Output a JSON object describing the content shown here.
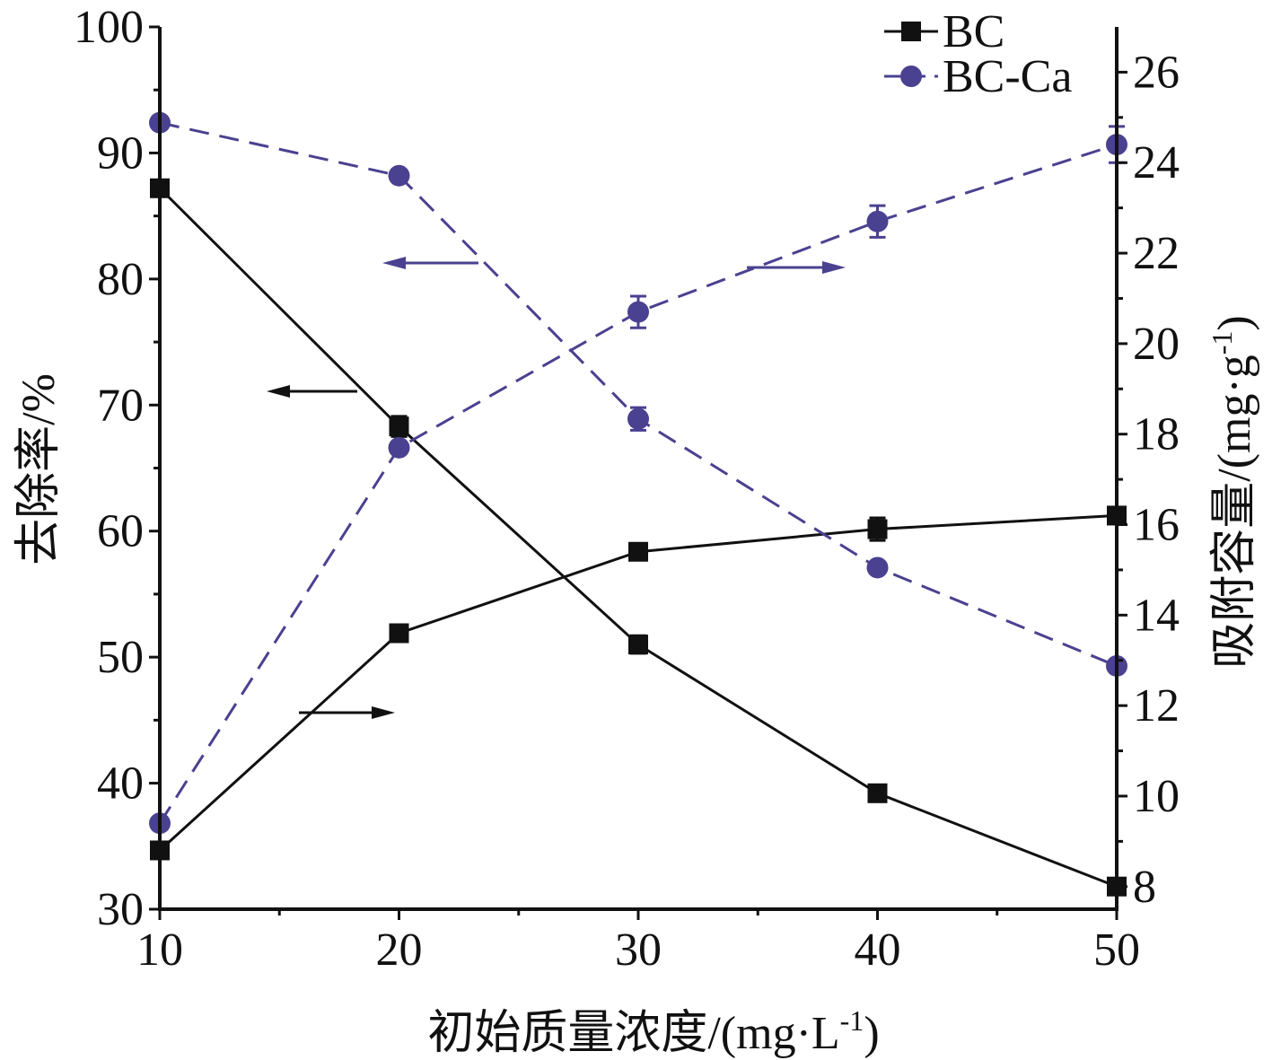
{
  "chart_data": {
    "type": "line",
    "x": [
      10,
      20,
      30,
      40,
      50
    ],
    "xlabel": "初始质量浓度/(mg·L-1)",
    "xlabel_main": "初始质量浓度/(mg·L",
    "xlabel_sup": "-1",
    "xlabel_close": ")",
    "ylabel_left": "去除率/%",
    "ylabel_right": "吸附容量/(mg·g-1)",
    "ylabel_right_main": "吸附容量/(mg·g",
    "ylabel_right_sup": "-1",
    "ylabel_right_close": ")",
    "xlim": [
      10,
      50
    ],
    "ylim_left": [
      30,
      100
    ],
    "ylim_right": [
      7.5,
      27
    ],
    "xticks": [
      10,
      20,
      30,
      40,
      50
    ],
    "yticks_left": [
      30,
      40,
      50,
      60,
      70,
      80,
      90,
      100
    ],
    "yticks_right": [
      8,
      10,
      12,
      14,
      16,
      18,
      20,
      22,
      24,
      26
    ],
    "grid": false,
    "legend_position": "top-right",
    "series": [
      {
        "name": "BC",
        "metric": "removal",
        "axis": "left",
        "values": [
          87.2,
          68.3,
          51.0,
          39.2,
          31.8
        ],
        "errors": [
          0,
          0.8,
          0.7,
          0,
          0.6
        ]
      },
      {
        "name": "BC",
        "metric": "capacity",
        "axis": "right",
        "values": [
          8.8,
          13.6,
          15.4,
          15.9,
          16.2
        ],
        "errors": [
          0,
          0,
          0,
          0.25,
          0
        ]
      },
      {
        "name": "BC-Ca",
        "metric": "removal",
        "axis": "left",
        "values": [
          92.4,
          88.2,
          68.9,
          57.1,
          49.3
        ],
        "errors": [
          0,
          0,
          0.9,
          0,
          0
        ]
      },
      {
        "name": "BC-Ca",
        "metric": "capacity",
        "axis": "right",
        "values": [
          9.4,
          17.7,
          20.7,
          22.7,
          24.4
        ],
        "errors": [
          0,
          0,
          0.35,
          0.35,
          0.4
        ]
      }
    ],
    "legend": [
      {
        "name": "BC",
        "color": "#111111",
        "marker": "square",
        "line": "solid"
      },
      {
        "name": "BC-Ca",
        "color": "#4a4190",
        "marker": "circle",
        "line": "dashed"
      }
    ],
    "colors": {
      "BC": "#111111",
      "BC-Ca": "#4a4190"
    }
  }
}
